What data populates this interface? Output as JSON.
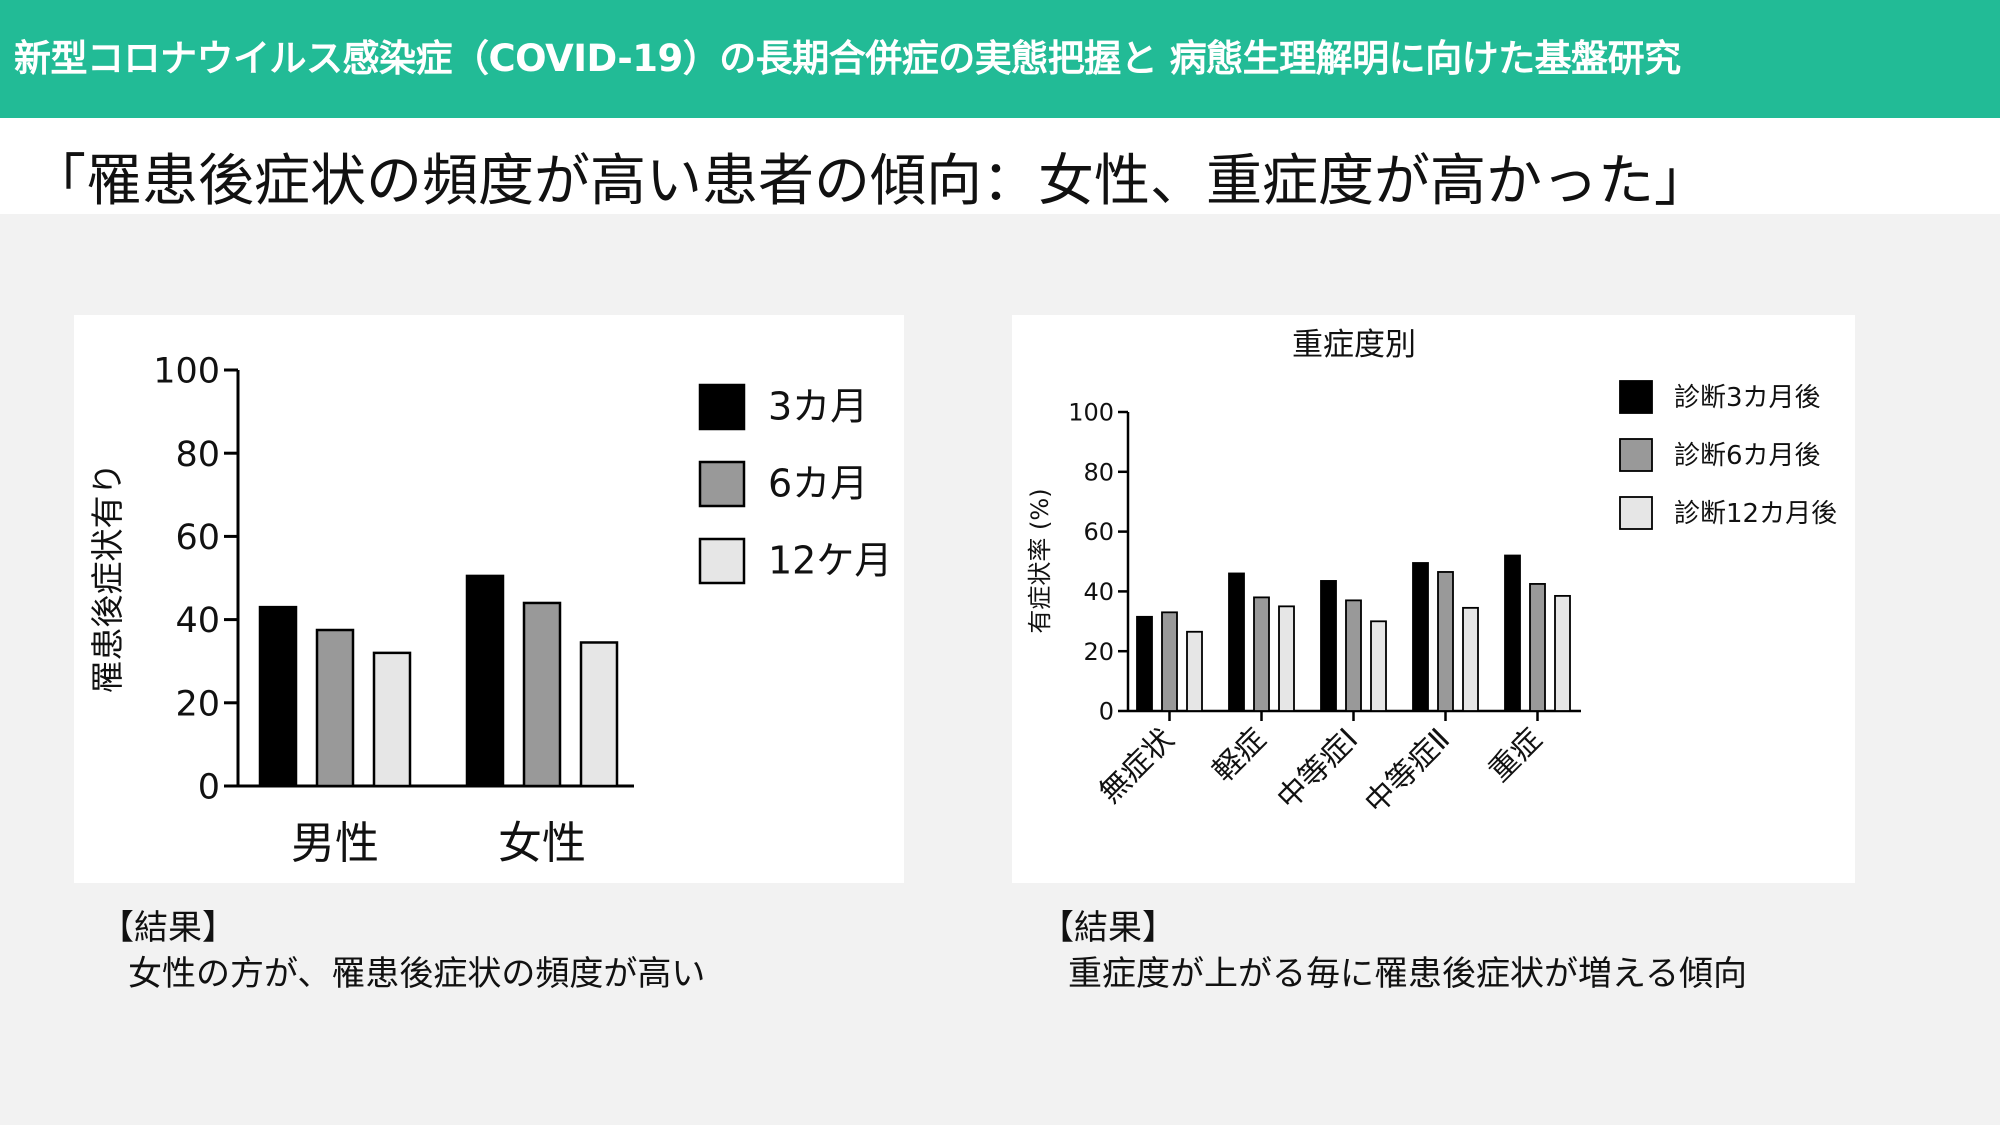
{
  "header": {
    "title": "新型コロナウイルス感染症（COVID-19）の長期合併症の実態把握と 病態生理解明に向けた基盤研究"
  },
  "subtitle": "「罹患後症状の頻度が高い患者の傾向：女性、重症度が高かった」",
  "colors": {
    "header_bg": "#22bb96",
    "series": [
      "#000000",
      "#999999",
      "#e6e6e6"
    ]
  },
  "chart_data": [
    {
      "type": "bar",
      "title": "",
      "xlabel": "",
      "ylabel": "罹患後症状有り",
      "ylim": [
        0,
        100
      ],
      "yticks": [
        "0",
        "20",
        "40",
        "60",
        "80",
        "100"
      ],
      "categories": [
        "男性",
        "女性"
      ],
      "series": [
        {
          "name": "3カ月",
          "values": [
            43,
            50.5
          ]
        },
        {
          "name": "6カ月",
          "values": [
            37.5,
            44
          ]
        },
        {
          "name": "12ケ月",
          "values": [
            32,
            34.5
          ]
        }
      ],
      "legend": "top-right",
      "grid": false
    },
    {
      "type": "bar",
      "title": "重症度別",
      "xlabel": "",
      "ylabel": "有症状率 (%)",
      "ylim": [
        0,
        100
      ],
      "yticks": [
        "0",
        "20",
        "40",
        "60",
        "80",
        "100"
      ],
      "categories": [
        "無症状",
        "軽症",
        "中等症Ⅰ",
        "中等症Ⅱ",
        "重症"
      ],
      "series": [
        {
          "name": "診断3カ月後",
          "values": [
            31.5,
            46,
            43.5,
            49.5,
            52
          ]
        },
        {
          "name": "診断6カ月後",
          "values": [
            33,
            38,
            37,
            46.5,
            42.5
          ]
        },
        {
          "name": "診断12カ月後",
          "values": [
            26.5,
            35,
            30,
            34.5,
            38.5
          ]
        }
      ],
      "legend": "top-right",
      "grid": false
    }
  ],
  "results": [
    {
      "heading": "【結果】",
      "body": "女性の方が、罹患後症状の頻度が高い"
    },
    {
      "heading": "【結果】",
      "body": "重症度が上がる毎に罹患後症状が増える傾向"
    }
  ]
}
